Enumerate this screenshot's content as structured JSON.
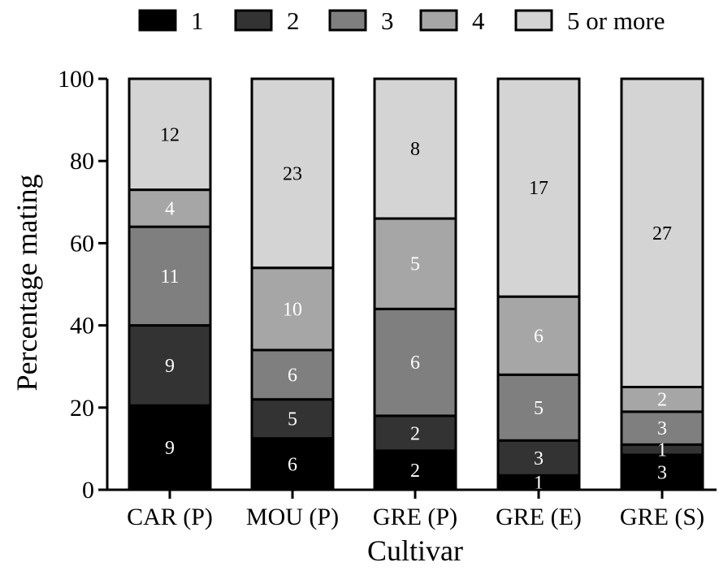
{
  "chart_data": {
    "type": "bar",
    "stacked": true,
    "title": "",
    "xlabel": "Cultivar",
    "ylabel": "Percentage mating",
    "ylim": [
      0,
      100
    ],
    "yticks": [
      0,
      20,
      40,
      60,
      80,
      100
    ],
    "grid": false,
    "legend_position": "top",
    "categories": [
      "CAR (P)",
      "MOU (P)",
      "GRE (P)",
      "GRE (E)",
      "GRE (S)"
    ],
    "series": [
      {
        "name": "1",
        "color": "#000000",
        "label_color": "#ffffff",
        "values": [
          20.5,
          12.5,
          9.5,
          3.5,
          8.5
        ],
        "labels": [
          "9",
          "6",
          "2",
          "1",
          "3"
        ]
      },
      {
        "name": "2",
        "color": "#333333",
        "label_color": "#ffffff",
        "values": [
          19.5,
          9.5,
          8.5,
          8.5,
          2.5
        ],
        "labels": [
          "9",
          "5",
          "2",
          "3",
          "1"
        ]
      },
      {
        "name": "3",
        "color": "#7f7f7f",
        "label_color": "#ffffff",
        "values": [
          24,
          12,
          26,
          16,
          8
        ],
        "labels": [
          "11",
          "6",
          "6",
          "5",
          "3"
        ]
      },
      {
        "name": "4",
        "color": "#a6a6a6",
        "label_color": "#ffffff",
        "values": [
          9,
          20,
          22,
          19,
          6
        ],
        "labels": [
          "4",
          "10",
          "5",
          "6",
          "2"
        ]
      },
      {
        "name": "5 or more",
        "color": "#d4d4d4",
        "label_color": "#000000",
        "values": [
          27,
          46,
          34,
          53,
          75
        ],
        "labels": [
          "12",
          "23",
          "8",
          "17",
          "27"
        ]
      }
    ]
  }
}
